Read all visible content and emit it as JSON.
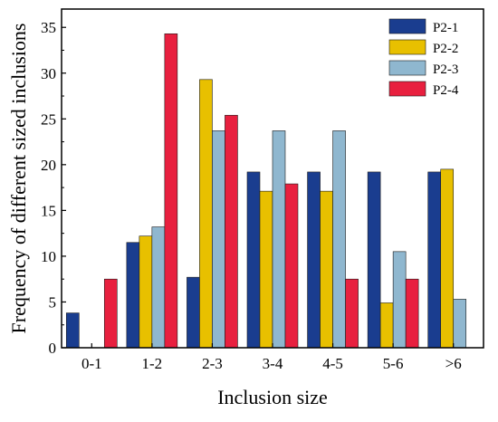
{
  "chart_data": {
    "type": "bar",
    "title": "",
    "xlabel": "Inclusion size",
    "ylabel": "Frequency of different sized inclusions",
    "categories": [
      "0-1",
      "1-2",
      "2-3",
      "3-4",
      "4-5",
      "5-6",
      ">6"
    ],
    "ylim": [
      0,
      37
    ],
    "yticks": [
      0,
      5,
      10,
      15,
      20,
      25,
      30,
      35
    ],
    "grid": false,
    "legend_position": "top-right",
    "series": [
      {
        "name": "P2-1",
        "color": "#1a3d8f",
        "values": [
          3.8,
          11.5,
          7.7,
          19.2,
          19.2,
          19.2,
          19.2
        ]
      },
      {
        "name": "P2-2",
        "color": "#e8c000",
        "values": [
          0,
          12.2,
          29.3,
          17.1,
          17.1,
          4.9,
          19.5
        ]
      },
      {
        "name": "P2-3",
        "color": "#8fb7cf",
        "values": [
          0,
          13.2,
          23.7,
          23.7,
          23.7,
          10.5,
          5.3
        ]
      },
      {
        "name": "P2-4",
        "color": "#e8203f",
        "values": [
          7.5,
          34.3,
          25.4,
          17.9,
          7.5,
          7.5,
          0
        ]
      }
    ]
  }
}
